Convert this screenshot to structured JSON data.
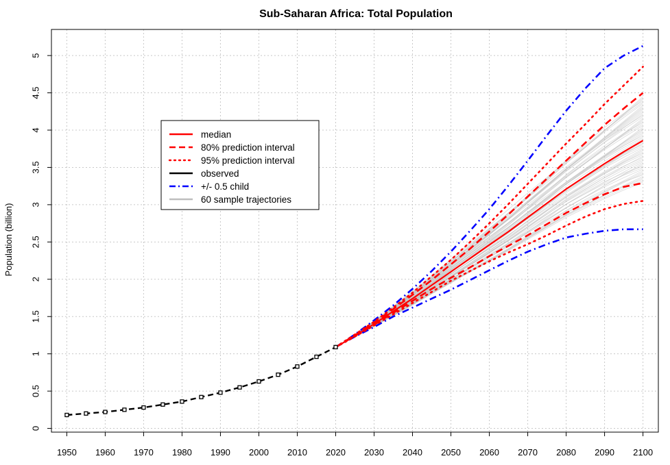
{
  "chart_data": {
    "type": "line",
    "title": "Sub-Saharan Africa: Total Population",
    "xlabel": "",
    "ylabel": "Population (billion)",
    "xlim": [
      1946,
      2104
    ],
    "ylim": [
      -0.05,
      5.35
    ],
    "x_ticks": [
      1950,
      1960,
      1970,
      1980,
      1990,
      2000,
      2010,
      2020,
      2030,
      2040,
      2050,
      2060,
      2070,
      2080,
      2090,
      2100
    ],
    "y_ticks": [
      0,
      0.5,
      1,
      1.5,
      2,
      2.5,
      3,
      3.5,
      4,
      4.5,
      5
    ],
    "y_tick_labels": [
      "0",
      "0.5",
      "1",
      "1.5",
      "2",
      "2.5",
      "3",
      "3.5",
      "4",
      "4.5",
      "5"
    ],
    "grid": true,
    "legend_position": "upper-left-inside",
    "legend": [
      {
        "label": "median",
        "color": "#ff0000",
        "style": "solid"
      },
      {
        "label": "80% prediction interval",
        "color": "#ff0000",
        "style": "dashed"
      },
      {
        "label": "95% prediction interval",
        "color": "#ff0000",
        "style": "dotted"
      },
      {
        "label": "observed",
        "color": "#000000",
        "style": "solid"
      },
      {
        "label": "+/- 0.5 child",
        "color": "#0000ff",
        "style": "dotdash"
      },
      {
        "label": "60 sample trajectories",
        "color": "#bebebe",
        "style": "solid"
      }
    ],
    "observed": {
      "x": [
        1950,
        1955,
        1960,
        1965,
        1970,
        1975,
        1980,
        1985,
        1990,
        1995,
        2000,
        2005,
        2010,
        2015,
        2020
      ],
      "y": [
        0.18,
        0.2,
        0.22,
        0.25,
        0.28,
        0.32,
        0.36,
        0.42,
        0.48,
        0.55,
        0.63,
        0.72,
        0.83,
        0.96,
        1.09
      ]
    },
    "projection_x": [
      2020,
      2025,
      2030,
      2035,
      2040,
      2045,
      2050,
      2055,
      2060,
      2065,
      2070,
      2075,
      2080,
      2085,
      2090,
      2095,
      2100
    ],
    "series": [
      {
        "key": "median",
        "values": [
          1.09,
          1.24,
          1.4,
          1.57,
          1.74,
          1.92,
          2.1,
          2.28,
          2.46,
          2.64,
          2.83,
          3.02,
          3.21,
          3.38,
          3.55,
          3.71,
          3.86
        ]
      },
      {
        "key": "pi80_upper",
        "values": [
          1.09,
          1.25,
          1.42,
          1.6,
          1.79,
          1.99,
          2.2,
          2.41,
          2.64,
          2.87,
          3.11,
          3.35,
          3.59,
          3.83,
          4.07,
          4.29,
          4.5
        ]
      },
      {
        "key": "pi80_lower",
        "values": [
          1.09,
          1.24,
          1.39,
          1.55,
          1.71,
          1.87,
          2.02,
          2.16,
          2.31,
          2.45,
          2.59,
          2.74,
          2.89,
          3.02,
          3.14,
          3.24,
          3.29
        ]
      },
      {
        "key": "pi95_upper",
        "values": [
          1.09,
          1.26,
          1.43,
          1.62,
          1.82,
          2.04,
          2.26,
          2.5,
          2.75,
          3.01,
          3.28,
          3.55,
          3.82,
          4.08,
          4.35,
          4.6,
          4.85
        ]
      },
      {
        "key": "pi95_lower",
        "values": [
          1.09,
          1.23,
          1.38,
          1.53,
          1.68,
          1.83,
          1.98,
          2.11,
          2.24,
          2.36,
          2.47,
          2.59,
          2.72,
          2.84,
          2.94,
          3.01,
          3.05
        ]
      },
      {
        "key": "half_child_upper",
        "values": [
          1.09,
          1.26,
          1.45,
          1.65,
          1.87,
          2.11,
          2.37,
          2.65,
          2.94,
          3.26,
          3.59,
          3.93,
          4.26,
          4.56,
          4.83,
          5.0,
          5.13
        ]
      },
      {
        "key": "half_child_lower",
        "values": [
          1.09,
          1.23,
          1.36,
          1.5,
          1.62,
          1.74,
          1.86,
          1.99,
          2.12,
          2.25,
          2.37,
          2.47,
          2.56,
          2.61,
          2.65,
          2.67,
          2.67
        ]
      }
    ],
    "sample_trajectories": {
      "count": 60,
      "color": "#bebebe",
      "range_at_2100": [
        3.3,
        4.45
      ]
    }
  }
}
